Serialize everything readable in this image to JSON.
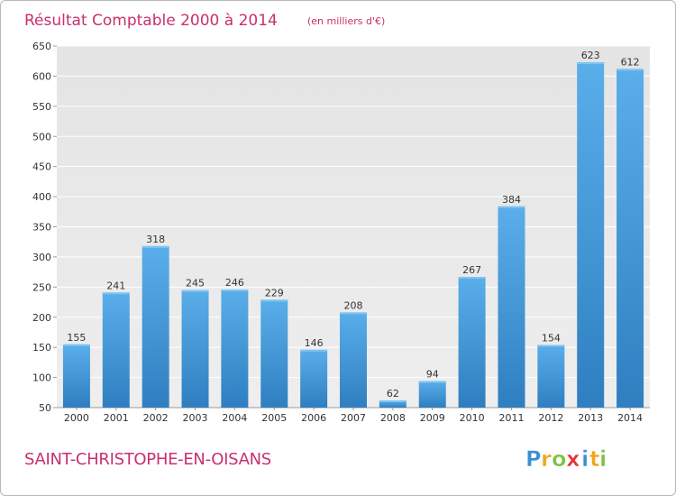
{
  "chart_data": {
    "type": "bar",
    "title": "Résultat Comptable 2000 à 2014",
    "subtitle": "(en milliers d'€)",
    "categories": [
      "2000",
      "2001",
      "2002",
      "2003",
      "2004",
      "2005",
      "2006",
      "2007",
      "2008",
      "2009",
      "2010",
      "2011",
      "2012",
      "2013",
      "2014"
    ],
    "values": [
      155,
      241,
      318,
      245,
      246,
      229,
      146,
      208,
      62,
      94,
      267,
      384,
      154,
      623,
      612
    ],
    "ylim": [
      50,
      650
    ],
    "yticks": [
      50,
      100,
      150,
      200,
      250,
      300,
      350,
      400,
      450,
      500,
      550,
      600,
      650
    ],
    "xlabel": "",
    "ylabel": "",
    "grid": true,
    "legend": "none"
  },
  "commune_name": "SAINT-CHRISTOPHE-EN-OISANS",
  "logo": {
    "text": "Proxiti",
    "letters": [
      "P",
      "r",
      "o",
      "x",
      "i",
      "t",
      "i"
    ],
    "colors": [
      "#3a8fd0",
      "#f2a51a",
      "#7cc242",
      "#e53238",
      "#3a8fd0",
      "#f2a51a",
      "#7cc242"
    ]
  },
  "colors": {
    "bar_top": "#5aaeea",
    "bar_bottom": "#2f7fc0",
    "plot_bg": "#e8e8e8",
    "grid": "#ffffff",
    "accent": "#c8306c"
  }
}
